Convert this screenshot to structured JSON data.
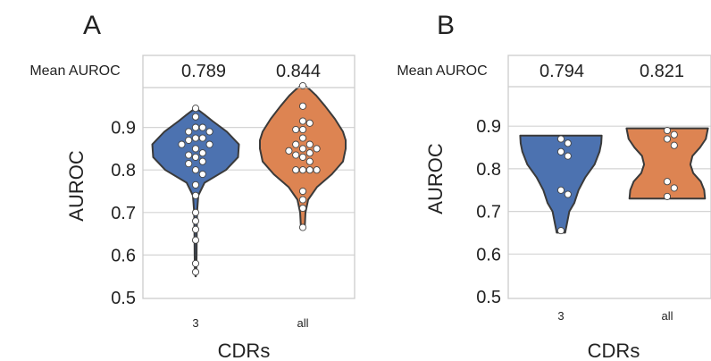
{
  "chart_data": [
    {
      "type": "violin",
      "panel_label": "A",
      "header_label": "Mean AUROC",
      "xlabel": "CDRs",
      "ylabel": "AUROC",
      "ylim": [
        0.5,
        1.0
      ],
      "yticks": [
        0.5,
        0.6,
        0.7,
        0.8,
        0.9
      ],
      "grid": true,
      "categories": [
        "3",
        "all"
      ],
      "means": [
        "0.789",
        "0.844"
      ],
      "violins": [
        {
          "category": "3",
          "color": "#4c72b0",
          "range": [
            0.55,
            0.945
          ],
          "profile": [
            [
              0.55,
              0.005
            ],
            [
              0.56,
              0.016
            ],
            [
              0.6,
              0.022
            ],
            [
              0.65,
              0.026
            ],
            [
              0.7,
              0.032
            ],
            [
              0.74,
              0.06
            ],
            [
              0.77,
              0.2
            ],
            [
              0.8,
              0.68
            ],
            [
              0.83,
              0.95
            ],
            [
              0.86,
              0.97
            ],
            [
              0.89,
              0.7
            ],
            [
              0.915,
              0.38
            ],
            [
              0.93,
              0.2
            ],
            [
              0.945,
              0.01
            ]
          ],
          "points": [
            0.945,
            0.925,
            0.9,
            0.9,
            0.89,
            0.89,
            0.875,
            0.875,
            0.87,
            0.86,
            0.86,
            0.85,
            0.84,
            0.835,
            0.83,
            0.82,
            0.815,
            0.8,
            0.79,
            0.765,
            0.74,
            0.7,
            0.68,
            0.66,
            0.635,
            0.58,
            0.56
          ]
        },
        {
          "category": "all",
          "color": "#dd8452",
          "range": [
            0.66,
            1.0
          ],
          "profile": [
            [
              0.66,
              0.005
            ],
            [
              0.67,
              0.045
            ],
            [
              0.7,
              0.06
            ],
            [
              0.73,
              0.12
            ],
            [
              0.76,
              0.32
            ],
            [
              0.79,
              0.65
            ],
            [
              0.82,
              0.9
            ],
            [
              0.85,
              0.96
            ],
            [
              0.87,
              0.96
            ],
            [
              0.89,
              0.9
            ],
            [
              0.92,
              0.72
            ],
            [
              0.95,
              0.5
            ],
            [
              0.975,
              0.3
            ],
            [
              0.99,
              0.15
            ],
            [
              1.0,
              0.02
            ]
          ],
          "points": [
            0.998,
            0.95,
            0.915,
            0.91,
            0.895,
            0.895,
            0.875,
            0.86,
            0.86,
            0.85,
            0.85,
            0.845,
            0.84,
            0.835,
            0.83,
            0.82,
            0.8,
            0.8,
            0.8,
            0.8,
            0.75,
            0.73,
            0.71,
            0.665
          ]
        }
      ],
      "violin_colors": [
        "#4c72b0",
        "#dd8452"
      ]
    },
    {
      "type": "violin",
      "panel_label": "B",
      "header_label": "Mean AUROC",
      "xlabel": "CDRs",
      "ylabel": "AUROC",
      "ylim": [
        0.5,
        0.96
      ],
      "yticks": [
        0.5,
        0.6,
        0.7,
        0.8,
        0.9
      ],
      "grid": true,
      "categories": [
        "3",
        "all"
      ],
      "means": [
        "0.794",
        "0.821"
      ],
      "violins": [
        {
          "category": "3",
          "color": "#4c72b0",
          "range": [
            0.65,
            0.878
          ],
          "profile": [
            [
              0.65,
              0.1
            ],
            [
              0.67,
              0.14
            ],
            [
              0.7,
              0.2
            ],
            [
              0.72,
              0.32
            ],
            [
              0.75,
              0.42
            ],
            [
              0.78,
              0.58
            ],
            [
              0.81,
              0.8
            ],
            [
              0.84,
              0.92
            ],
            [
              0.86,
              0.96
            ],
            [
              0.878,
              0.97
            ]
          ],
          "points": [
            0.87,
            0.86,
            0.84,
            0.83,
            0.75,
            0.74,
            0.655
          ]
        },
        {
          "category": "all",
          "color": "#dd8452",
          "range": [
            0.73,
            0.895
          ],
          "profile": [
            [
              0.73,
              0.9
            ],
            [
              0.75,
              0.88
            ],
            [
              0.77,
              0.8
            ],
            [
              0.79,
              0.62
            ],
            [
              0.81,
              0.55
            ],
            [
              0.83,
              0.6
            ],
            [
              0.85,
              0.78
            ],
            [
              0.87,
              0.92
            ],
            [
              0.895,
              0.97
            ]
          ],
          "points": [
            0.89,
            0.88,
            0.87,
            0.855,
            0.77,
            0.755,
            0.735
          ]
        }
      ],
      "violin_colors": [
        "#4c72b0",
        "#dd8452"
      ]
    }
  ]
}
